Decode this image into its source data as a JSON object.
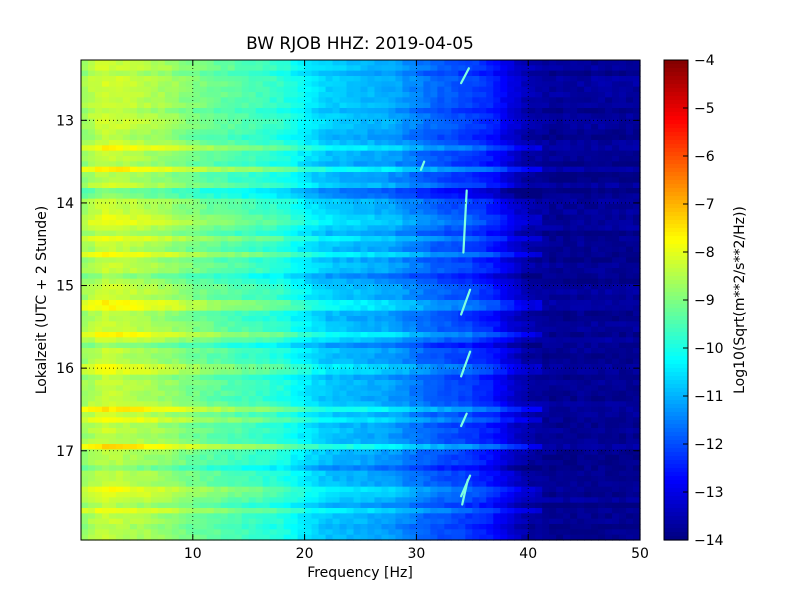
{
  "chart_data": {
    "type": "heatmap",
    "title": "BW RJOB HHZ: 2019-04-05",
    "xlabel": "Frequency [Hz]",
    "ylabel": "Lokalzeit (UTC + 2 Stunde)",
    "xlim": [
      0,
      50
    ],
    "ylim": [
      12.27,
      18.08
    ],
    "y_inverted": true,
    "x_ticks": [
      10,
      20,
      30,
      40,
      50
    ],
    "x_tick_labels": [
      "10",
      "20",
      "30",
      "40",
      "50"
    ],
    "y_ticks": [
      13,
      14,
      15,
      16,
      17
    ],
    "y_tick_labels": [
      "13",
      "14",
      "15",
      "16",
      "17"
    ],
    "grid": true,
    "colormap": "jet",
    "colorbar": {
      "label": "Log10(Sqrt(m**2/s**2/Hz))",
      "range": [
        -14,
        -4
      ],
      "ticks": [
        -4,
        -5,
        -6,
        -7,
        -8,
        -9,
        -10,
        -11,
        -12,
        -13,
        -14
      ],
      "tick_labels": [
        "−4",
        "−5",
        "−6",
        "−7",
        "−8",
        "−9",
        "−10",
        "−11",
        "−12",
        "−13",
        "−14"
      ]
    },
    "spectral_profile": {
      "frequency_hz": [
        0,
        2,
        5,
        8,
        10,
        12,
        15,
        18,
        20,
        22,
        25,
        28,
        30,
        32,
        35,
        37,
        38,
        39,
        40,
        42,
        45,
        50
      ],
      "value_log10": [
        -8.8,
        -8.3,
        -8.5,
        -8.8,
        -9.1,
        -9.3,
        -9.6,
        -9.9,
        -10.4,
        -10.8,
        -11.0,
        -11.2,
        -11.6,
        -11.9,
        -12.2,
        -12.6,
        -13.0,
        -13.3,
        -13.6,
        -13.8,
        -13.8,
        -13.8
      ]
    },
    "time_bands": [
      {
        "time": 13.35,
        "delta": 0.5
      },
      {
        "time": 13.6,
        "delta": 0.6
      },
      {
        "time": 13.9,
        "delta": -0.6
      },
      {
        "time": 14.2,
        "delta": 0.4
      },
      {
        "time": 14.42,
        "delta": 0.5
      },
      {
        "time": 14.62,
        "delta": 0.7
      },
      {
        "time": 14.9,
        "delta": -0.5
      },
      {
        "time": 15.25,
        "delta": 0.5
      },
      {
        "time": 15.58,
        "delta": 0.8
      },
      {
        "time": 15.72,
        "delta": -0.5
      },
      {
        "time": 16.0,
        "delta": 0.4
      },
      {
        "time": 16.5,
        "delta": 0.8
      },
      {
        "time": 16.62,
        "delta": 0.6
      },
      {
        "time": 16.95,
        "delta": 0.8
      },
      {
        "time": 17.22,
        "delta": -0.5
      },
      {
        "time": 17.5,
        "delta": 0.5
      },
      {
        "time": 17.72,
        "delta": 0.5
      }
    ],
    "narrowband_events": [
      {
        "t_start": 12.37,
        "t_end": 12.55,
        "f_start": 34.7,
        "f_end": 34.0
      },
      {
        "t_start": 13.5,
        "t_end": 13.6,
        "f_start": 30.7,
        "f_end": 30.4
      },
      {
        "t_start": 13.85,
        "t_end": 14.6,
        "f_start": 34.5,
        "f_end": 34.2
      },
      {
        "t_start": 15.05,
        "t_end": 15.35,
        "f_start": 34.8,
        "f_end": 34.0
      },
      {
        "t_start": 15.8,
        "t_end": 16.1,
        "f_start": 34.8,
        "f_end": 34.0
      },
      {
        "t_start": 16.55,
        "t_end": 16.7,
        "f_start": 34.5,
        "f_end": 34.0
      },
      {
        "t_start": 17.3,
        "t_end": 17.55,
        "f_start": 34.8,
        "f_end": 34.0
      },
      {
        "t_start": 17.35,
        "t_end": 17.65,
        "f_start": 34.6,
        "f_end": 34.1
      }
    ]
  }
}
